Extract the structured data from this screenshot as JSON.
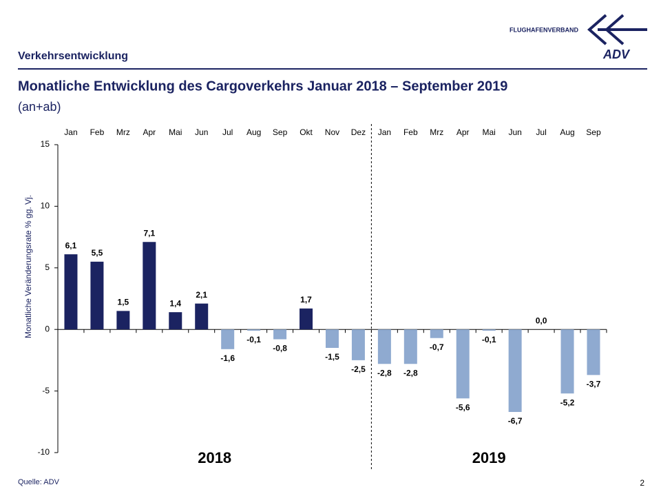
{
  "header": {
    "section": "Verkehrsentwicklung",
    "logo_text": "FLUGHAFENVERBAND",
    "logo_mark": "ADV"
  },
  "chart_data": {
    "type": "bar",
    "title": "Monatliche Entwicklung des Cargoverkehrs Januar 2018 – September 2019",
    "subtitle": "(an+ab)",
    "y_label": "Monatliche Veränderungsrate % gg. Vj.",
    "groups": [
      {
        "label": "2018",
        "categories": [
          "Jan",
          "Feb",
          "Mrz",
          "Apr",
          "Mai",
          "Jun",
          "Jul",
          "Aug",
          "Sep",
          "Okt",
          "Nov",
          "Dez"
        ],
        "values": [
          6.1,
          5.5,
          1.5,
          7.1,
          1.4,
          2.1,
          -1.6,
          -0.1,
          -0.8,
          1.7,
          -1.5,
          -2.5
        ],
        "value_labels": [
          "6,1",
          "5,5",
          "1,5",
          "7,1",
          "1,4",
          "2,1",
          "-1,6",
          "-0,1",
          "-0,8",
          "1,7",
          "-1,5",
          "-2,5"
        ]
      },
      {
        "label": "2019",
        "categories": [
          "Jan",
          "Feb",
          "Mrz",
          "Apr",
          "Mai",
          "Jun",
          "Jul",
          "Aug",
          "Sep"
        ],
        "values": [
          -2.8,
          -2.8,
          -0.7,
          -5.6,
          -0.1,
          -6.7,
          0.0,
          -5.2,
          -3.7
        ],
        "value_labels": [
          "-2,8",
          "-2,8",
          "-0,7",
          "-5,6",
          "-0,1",
          "-6,7",
          "0,0",
          "-5,2",
          "-3,7"
        ]
      }
    ],
    "color_positive": "#1b2361",
    "color_negative": "#8faad0",
    "ylim": [
      -10,
      15
    ],
    "yticks": [
      -10,
      -5,
      0,
      5,
      10,
      15
    ]
  },
  "footer": {
    "source": "Quelle: ADV",
    "page": "2"
  }
}
